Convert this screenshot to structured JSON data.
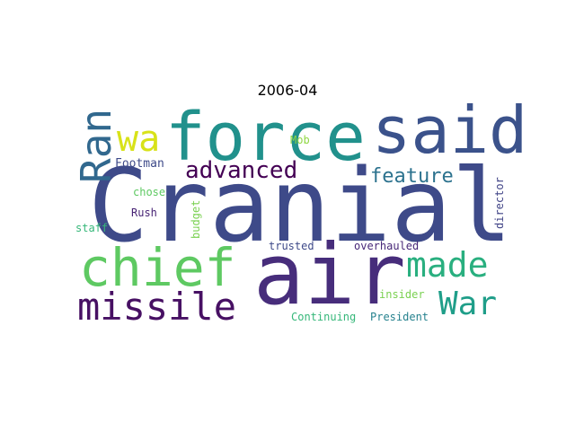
{
  "figure": {
    "title": "2006-04"
  },
  "words": [
    {
      "text": "Cranial",
      "color": "#3e4a89"
    },
    {
      "text": "air",
      "color": "#472d7b"
    },
    {
      "text": "force",
      "color": "#21918c"
    },
    {
      "text": "said",
      "color": "#3b528b"
    },
    {
      "text": "chief",
      "color": "#5ec962"
    },
    {
      "text": "missile",
      "color": "#471063"
    },
    {
      "text": "made",
      "color": "#29af7f"
    },
    {
      "text": "War",
      "color": "#1f9e89"
    },
    {
      "text": "advanced",
      "color": "#440154"
    },
    {
      "text": "Ran",
      "color": "#31688e"
    },
    {
      "text": "wa",
      "color": "#d8e219"
    },
    {
      "text": "feature",
      "color": "#2c728e"
    },
    {
      "text": "Footman",
      "color": "#3e4a89"
    },
    {
      "text": "Rush",
      "color": "#482475"
    },
    {
      "text": "chose",
      "color": "#5ec962"
    },
    {
      "text": "staff",
      "color": "#35b779"
    },
    {
      "text": "Mob",
      "color": "#90d743"
    },
    {
      "text": "budget",
      "color": "#7ad151"
    },
    {
      "text": "director",
      "color": "#414487"
    },
    {
      "text": "trusted",
      "color": "#3e4a89"
    },
    {
      "text": "overhauled",
      "color": "#482878"
    },
    {
      "text": "insider",
      "color": "#7ad151"
    },
    {
      "text": "Continuing",
      "color": "#35b779"
    },
    {
      "text": "President",
      "color": "#26828e"
    }
  ]
}
